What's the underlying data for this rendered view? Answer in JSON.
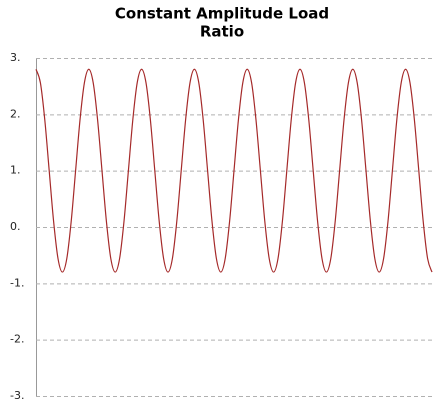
{
  "chart_data": {
    "type": "line",
    "title": [
      "Constant Amplitude Load",
      "Ratio"
    ],
    "color": "#a52a2a",
    "values": [
      2.8,
      2.56,
      1.9,
      1,
      0.1,
      -0.56,
      -0.8,
      -0.56,
      0.1,
      1,
      1.9,
      2.56,
      2.8,
      2.56,
      1.9,
      1,
      0.1,
      -0.56,
      -0.8,
      -0.56,
      0.1,
      1,
      1.9,
      2.56,
      2.8,
      2.56,
      1.9,
      1,
      0.1,
      -0.56,
      -0.8,
      -0.56,
      0.1,
      1,
      1.9,
      2.56,
      2.8,
      2.56,
      1.9,
      1,
      0.1,
      -0.56,
      -0.8,
      -0.56,
      0.1,
      1,
      1.9,
      2.56,
      2.8,
      2.56,
      1.9,
      1,
      0.1,
      -0.56,
      -0.8,
      -0.56,
      0.1,
      1,
      1.9,
      2.56,
      2.8,
      2.56,
      1.9,
      1,
      0.1,
      -0.56,
      -0.8,
      -0.56,
      0.1,
      1,
      1.9,
      2.56,
      2.8,
      2.56,
      1.9,
      1,
      0.1,
      -0.56,
      -0.8,
      -0.56,
      0.1,
      1,
      1.9,
      2.56,
      2.8,
      2.56,
      1.9,
      1,
      0.1,
      -0.56,
      -0.8
    ],
    "ylim": [
      -3,
      3
    ],
    "yticks": [
      {
        "value": 3,
        "label": "3."
      },
      {
        "value": 2,
        "label": "2."
      },
      {
        "value": 1,
        "label": "1."
      },
      {
        "value": 0,
        "label": "0."
      },
      {
        "value": -1,
        "label": "-1."
      },
      {
        "value": -2,
        "label": "-2."
      },
      {
        "value": -3,
        "label": "-3."
      }
    ],
    "grid": true
  }
}
